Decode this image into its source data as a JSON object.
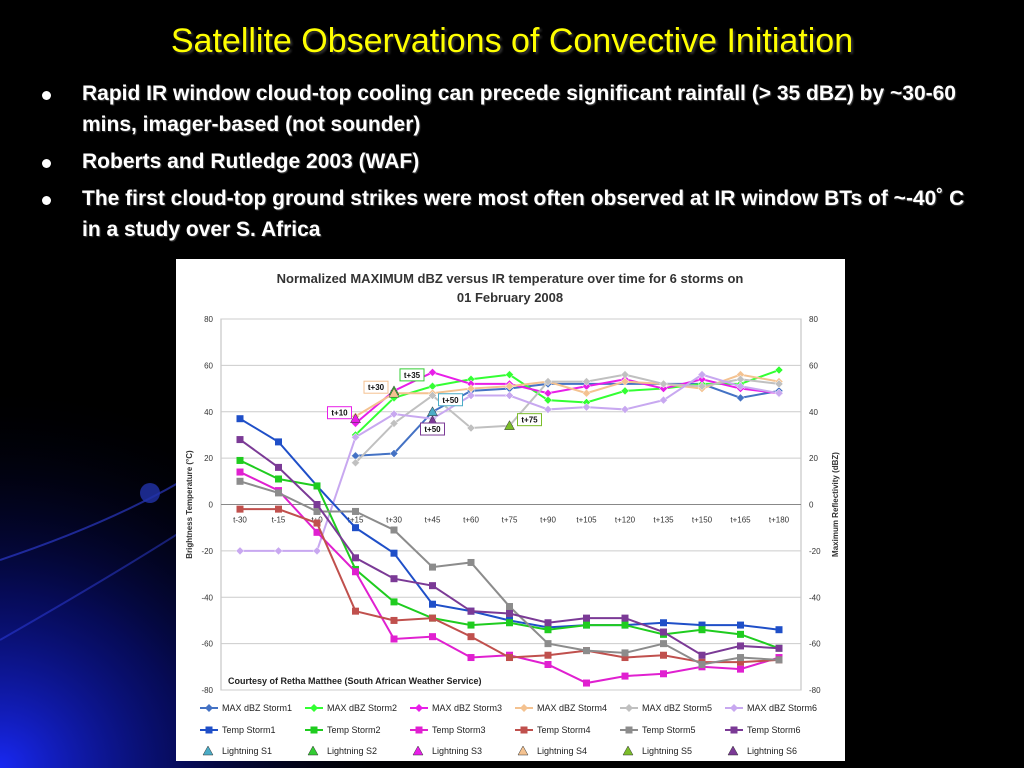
{
  "slide": {
    "title": "Satellite Observations of Convective Initiation",
    "bullets": [
      "Rapid IR window cloud-top cooling can precede significant rainfall (> 35 dBZ) by ~30-60 mins, imager-based  (not sounder)",
      "Roberts and Rutledge 2003 (WAF)",
      "The first cloud-top ground strikes were most often observed at IR window BTs of ~-40˚  C in a study over S. Africa"
    ]
  },
  "colors": {
    "title": "#ffff00",
    "storm1": "#1f4fc8",
    "storm2": "#1fcc1f",
    "storm3": "#e020d0",
    "storm4": "#c0504d",
    "storm5": "#8c8c8c",
    "storm6": "#7b3a96",
    "max_storm1": "#4472c4",
    "max_storm2": "#33ff33",
    "max_storm3": "#e81ee8",
    "max_storm4": "#f4c290",
    "max_storm5": "#c0c0c0",
    "max_storm6": "#c8a8f0"
  },
  "chart_data": {
    "type": "line",
    "title": "Normalized MAXIMUM dBZ versus IR temperature over time for 6 storms on 01 February 2008",
    "ylabel": "Brightness Temperature (°C)",
    "y2label": "Maximum Reflectivity (dBZ)",
    "ylim": [
      -80,
      80
    ],
    "y2lim": [
      -80,
      80
    ],
    "yticks": [
      "80",
      "60",
      "40",
      "20",
      "0",
      "-20",
      "-40",
      "-60",
      "-80"
    ],
    "grid": true,
    "credit": "Courtesy of Retha Matthee (South African Weather Service)",
    "categories": [
      "t-30",
      "t-15",
      "t+0",
      "t+15",
      "t+30",
      "t+45",
      "t+60",
      "t+75",
      "t+90",
      "t+105",
      "t+120",
      "t+135",
      "t+150",
      "t+165",
      "t+180"
    ],
    "series": [
      {
        "name": "MAX dBZ Storm1",
        "color": "#4472c4",
        "marker": "diamond",
        "values": [
          null,
          null,
          null,
          21,
          22,
          40,
          49,
          50,
          52,
          null,
          null,
          null,
          52,
          46,
          49
        ]
      },
      {
        "name": "MAX dBZ Storm2",
        "color": "#33ff33",
        "marker": "diamond",
        "values": [
          null,
          null,
          null,
          30,
          46,
          51,
          54,
          56,
          45,
          44,
          49,
          50,
          52,
          52,
          58
        ]
      },
      {
        "name": "MAX dBZ Storm3",
        "color": "#e81ee8",
        "marker": "diamond",
        "values": [
          null,
          null,
          null,
          35,
          49,
          57,
          52,
          52,
          48,
          51,
          54,
          50,
          54,
          50,
          48
        ]
      },
      {
        "name": "MAX dBZ Storm4",
        "color": "#f4c290",
        "marker": "diamond",
        "values": [
          null,
          null,
          null,
          38,
          48,
          48,
          50,
          51,
          53,
          48,
          53,
          52,
          50,
          56,
          53
        ]
      },
      {
        "name": "MAX dBZ Storm5",
        "color": "#c0c0c0",
        "marker": "diamond",
        "values": [
          null,
          null,
          null,
          18,
          35,
          47,
          33,
          34,
          53,
          53,
          56,
          52,
          51,
          54,
          52
        ]
      },
      {
        "name": "MAX dBZ Storm6",
        "color": "#c8a8f0",
        "marker": "diamond",
        "values": [
          -20,
          -20,
          -20,
          29,
          39,
          37,
          47,
          47,
          41,
          42,
          41,
          45,
          56,
          51,
          48
        ]
      },
      {
        "name": "Temp Storm1",
        "color": "#1f4fc8",
        "marker": "square",
        "values": [
          37,
          27,
          8,
          -10,
          -21,
          -43,
          -46,
          -50,
          -53,
          -52,
          -52,
          -51,
          -52,
          -52,
          -54
        ]
      },
      {
        "name": "Temp Storm2",
        "color": "#1fcc1f",
        "marker": "square",
        "values": [
          19,
          11,
          8,
          -28,
          -42,
          -49,
          -52,
          -51,
          -54,
          -52,
          -52,
          -56,
          -54,
          -56,
          -62
        ]
      },
      {
        "name": "Temp Storm3",
        "color": "#e020d0",
        "marker": "square",
        "values": [
          14,
          6,
          -12,
          -29,
          -58,
          -57,
          -66,
          -65,
          -69,
          -77,
          -74,
          -73,
          -70,
          -71,
          -66
        ]
      },
      {
        "name": "Temp Storm4",
        "color": "#c0504d",
        "marker": "square",
        "values": [
          -2,
          -2,
          -8,
          -46,
          -50,
          -49,
          -57,
          -66,
          -65,
          -63,
          -66,
          -65,
          -68,
          -68,
          -67
        ]
      },
      {
        "name": "Temp Storm5",
        "color": "#8c8c8c",
        "marker": "square",
        "values": [
          10,
          5,
          -3,
          -3,
          -11,
          -27,
          -25,
          -44,
          -60,
          -63,
          -64,
          -60,
          -69,
          -66,
          -67
        ]
      },
      {
        "name": "Temp Storm6",
        "color": "#7b3a96",
        "marker": "square",
        "values": [
          28,
          16,
          0,
          -23,
          -32,
          -35,
          -46,
          -47,
          -51,
          -49,
          -49,
          -55,
          -65,
          -61,
          -62
        ]
      }
    ],
    "lightning": [
      {
        "name": "Lightning S1",
        "color": "#4bacc6",
        "x": "t+45",
        "y": 40,
        "label": "t+50"
      },
      {
        "name": "Lightning S2",
        "color": "#33cc33",
        "x": "t+30",
        "y": 49,
        "label": "t+35"
      },
      {
        "name": "Lightning S3",
        "color": "#e81ee8",
        "x": "t+15",
        "y": 37,
        "label": "t+10"
      },
      {
        "name": "Lightning S4",
        "color": "#f4c290",
        "x": "t+30",
        "y": 48,
        "label": "t+30"
      },
      {
        "name": "Lightning S5",
        "color": "#7bbd2a",
        "x": "t+75",
        "y": 34,
        "label": "t+75"
      },
      {
        "name": "Lightning S6",
        "color": "#7b3a96",
        "x": "t+45",
        "y": 36,
        "label": "t+50"
      }
    ]
  }
}
